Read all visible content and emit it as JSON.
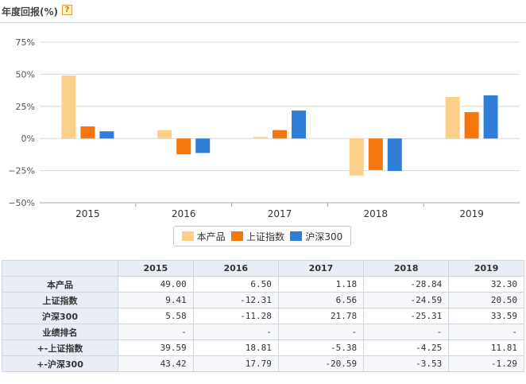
{
  "header": {
    "title": "年度回报(%)",
    "help_label": "?"
  },
  "chart_data": {
    "type": "bar",
    "categories": [
      "2015",
      "2016",
      "2017",
      "2018",
      "2019"
    ],
    "series": [
      {
        "name": "本产品",
        "color": "#fdd08a",
        "values": [
          49.0,
          6.5,
          1.18,
          -28.84,
          32.3
        ]
      },
      {
        "name": "上证指数",
        "color": "#f6760e",
        "values": [
          9.41,
          -12.31,
          6.56,
          -24.59,
          20.5
        ]
      },
      {
        "name": "沪深300",
        "color": "#2f7ed8",
        "values": [
          5.58,
          -11.28,
          21.78,
          -25.31,
          33.59
        ]
      }
    ],
    "ylim": [
      -50,
      75
    ],
    "yticks": [
      75,
      50,
      25,
      0,
      -25,
      -50
    ],
    "ytick_labels": [
      "75%",
      "50%",
      "25%",
      "0%",
      "−25%",
      "−50%"
    ],
    "grid": "horizontal",
    "legend_position": "bottom-center"
  },
  "table": {
    "headers": [
      "",
      "2015",
      "2016",
      "2017",
      "2018",
      "2019"
    ],
    "rows": [
      {
        "label": "本产品",
        "cells": [
          "49.00",
          "6.50",
          "1.18",
          "-28.84",
          "32.30"
        ]
      },
      {
        "label": "上证指数",
        "cells": [
          "9.41",
          "-12.31",
          "6.56",
          "-24.59",
          "20.50"
        ]
      },
      {
        "label": "沪深300",
        "cells": [
          "5.58",
          "-11.28",
          "21.78",
          "-25.31",
          "33.59"
        ]
      },
      {
        "label": "业绩排名",
        "cells": [
          "-",
          "-",
          "-",
          "-",
          "-"
        ]
      },
      {
        "label": "+-上证指数",
        "cells": [
          "39.59",
          "18.81",
          "-5.38",
          "-4.25",
          "11.81"
        ]
      },
      {
        "label": "+-沪深300",
        "cells": [
          "43.42",
          "17.79",
          "-20.59",
          "-3.53",
          "-1.29"
        ]
      }
    ]
  }
}
